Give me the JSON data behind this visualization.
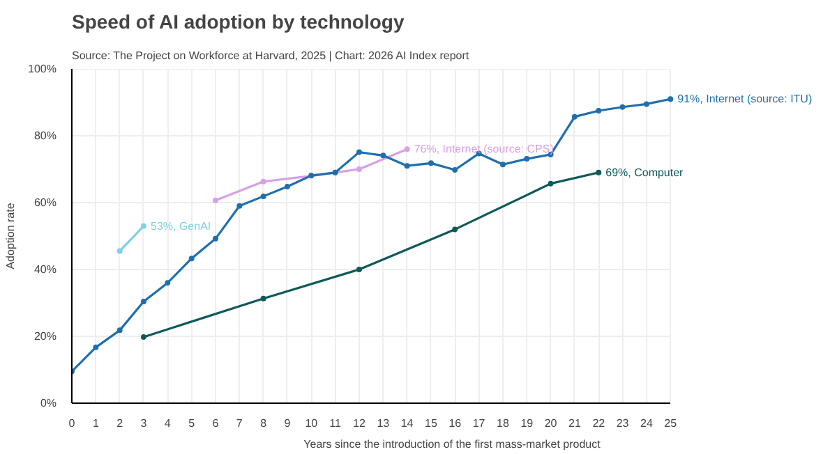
{
  "chart_data": {
    "type": "line",
    "title": "Speed of AI adoption by technology",
    "subtitle": "Source: The Project on Workforce at Harvard, 2025 | Chart: 2026 AI Index report",
    "xlabel": "Years since the introduction of the first mass-market product",
    "ylabel": "Adoption rate",
    "series": [
      {
        "color": "#1f6fae",
        "x": [
          0,
          1,
          2,
          3,
          4,
          5,
          6,
          7,
          8,
          9,
          10,
          11,
          12,
          13,
          14,
          15,
          16,
          17,
          18,
          19,
          20,
          21,
          22,
          23,
          24,
          25
        ],
        "values": [
          9.5,
          16.7,
          21.8,
          30.4,
          36,
          43.3,
          49.2,
          59,
          61.9,
          64.8,
          68.1,
          69,
          75.1,
          74.1,
          71,
          71.8,
          69.8,
          74.7,
          71.4,
          73.1,
          74.4,
          85.7,
          87.5,
          88.6,
          89.5,
          91
        ],
        "value_labels": [
          null,
          null,
          null,
          null,
          null,
          null,
          null,
          null,
          null,
          null,
          null,
          null,
          null,
          null,
          null,
          null,
          null,
          null,
          null,
          null,
          null,
          null,
          null,
          null,
          null,
          "91%, Internet (source: ITU)"
        ]
      },
      {
        "color": "#d9a0e8",
        "x": [
          6,
          8,
          10,
          11,
          12,
          14
        ],
        "values": [
          60.7,
          66.3,
          68,
          69,
          70,
          76
        ],
        "value_labels": [
          null,
          null,
          null,
          null,
          null,
          "76%, Internet (source: CPS)"
        ]
      },
      {
        "color": "#7fd0e6",
        "x": [
          2,
          3
        ],
        "values": [
          45.5,
          53
        ],
        "value_labels": [
          null,
          "53%, GenAI"
        ]
      },
      {
        "color": "#0e5a5a",
        "x": [
          3,
          8,
          12,
          16,
          20,
          22
        ],
        "values": [
          19.8,
          31.3,
          40,
          52,
          65.7,
          69
        ],
        "value_labels": [
          null,
          null,
          null,
          null,
          null,
          "69%, Computer"
        ]
      }
    ],
    "xlim": [
      0,
      25
    ],
    "xticks": [
      0,
      1,
      2,
      3,
      4,
      5,
      6,
      7,
      8,
      9,
      10,
      11,
      12,
      13,
      14,
      15,
      16,
      17,
      18,
      19,
      20,
      21,
      22,
      23,
      24,
      25
    ],
    "ylim": [
      0,
      100
    ],
    "yticks": [
      {
        "value": 0,
        "label": "0%"
      },
      {
        "value": 20,
        "label": "20%"
      },
      {
        "value": 40,
        "label": "40%"
      },
      {
        "value": 60,
        "label": "60%"
      },
      {
        "value": 80,
        "label": "80%"
      },
      {
        "value": 100,
        "label": "100%"
      }
    ],
    "grid": true,
    "marker": "circle",
    "line_style": "solid"
  }
}
